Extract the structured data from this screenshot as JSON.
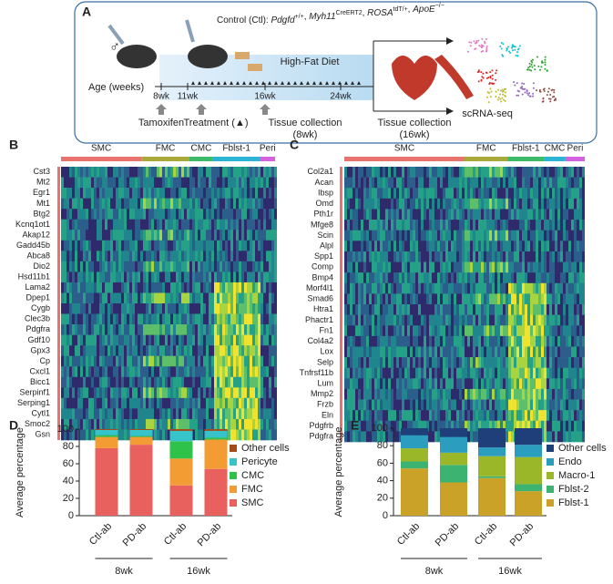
{
  "panel_a": {
    "label": "A",
    "genotype": {
      "prefix": "Control (Ctl): ",
      "separator": ", ",
      "genes": [
        {
          "gene": "Pdgfd",
          "sup": "+/+"
        },
        {
          "gene": "Myh11",
          "sup": "CreERT2"
        },
        {
          "gene": "ROSA",
          "sup": "tdT/+"
        },
        {
          "gene": "ApoE",
          "sup": "−/−"
        }
      ]
    },
    "sex": "♂",
    "diet": "High-Fat Diet",
    "age_label": "Age (weeks)",
    "timeline_labels": [
      "8wk",
      "11wk",
      "16wk",
      "24wk"
    ],
    "steps": [
      "Tamoxifen",
      "Treatment (▲)"
    ],
    "collection_8wk": [
      "Tissue collection",
      "(8wk)"
    ],
    "collection_16wk": [
      "Tissue collection",
      "(16wk)"
    ],
    "method": "scRNA-seq"
  },
  "heatmap_b": {
    "label": "B",
    "clusters": [
      {
        "name": "SMC",
        "color": "#e8726d"
      },
      {
        "name": "FMC",
        "color": "#a8a93a"
      },
      {
        "name": "CMC",
        "color": "#3dbb6a"
      },
      {
        "name": "Fblst-1",
        "color": "#2ab3d3"
      },
      {
        "name": "Peri",
        "color": "#d462e0"
      }
    ],
    "genes": [
      {
        "name": "Cst3",
        "color": "#222222"
      },
      {
        "name": "Mt2",
        "color": "#222222"
      },
      {
        "name": "Egr1",
        "color": "#d6249f"
      },
      {
        "name": "Mt1",
        "color": "#222222"
      },
      {
        "name": "Btg2",
        "color": "#222222"
      },
      {
        "name": "Kcnq1ot1",
        "color": "#222222"
      },
      {
        "name": "Akap12",
        "color": "#d6249f"
      },
      {
        "name": "Gadd45b",
        "color": "#d6249f"
      },
      {
        "name": "Abca8",
        "color": "#d6249f"
      },
      {
        "name": "Dio2",
        "color": "#222222"
      },
      {
        "name": "Hsd11b1",
        "color": "#d6249f"
      },
      {
        "name": "Lama2",
        "color": "#222222"
      },
      {
        "name": "Dpep1",
        "color": "#222222"
      },
      {
        "name": "Cygb",
        "color": "#d6249f"
      },
      {
        "name": "Clec3b",
        "color": "#222222"
      },
      {
        "name": "Pdgfra",
        "color": "#d6249f"
      },
      {
        "name": "Gdf10",
        "color": "#222222"
      },
      {
        "name": "Gpx3",
        "color": "#222222"
      },
      {
        "name": "Cp",
        "color": "#222222"
      },
      {
        "name": "Cxcl1",
        "color": "#222222"
      },
      {
        "name": "Bicc1",
        "color": "#d6249f"
      },
      {
        "name": "Serpinf1",
        "color": "#d6249f"
      },
      {
        "name": "Serping1",
        "color": "#222222"
      },
      {
        "name": "Cytl1",
        "color": "#222222"
      },
      {
        "name": "Smoc2",
        "color": "#222222"
      },
      {
        "name": "Gsn",
        "color": "#d6249f"
      }
    ]
  },
  "heatmap_c": {
    "label": "C",
    "clusters": [
      {
        "name": "SMC",
        "color": "#e8726d"
      },
      {
        "name": "FMC",
        "color": "#a8a93a"
      },
      {
        "name": "Fblst-1",
        "color": "#3dbb6a"
      },
      {
        "name": "CMC",
        "color": "#2ab3d3"
      },
      {
        "name": "Peri",
        "color": "#d462e0"
      }
    ],
    "genes": [
      {
        "name": "Col2a1",
        "color": "#d6249f"
      },
      {
        "name": "Acan",
        "color": "#d6249f"
      },
      {
        "name": "Ibsp",
        "color": "#222222"
      },
      {
        "name": "Omd",
        "color": "#222222"
      },
      {
        "name": "Pth1r",
        "color": "#d6249f"
      },
      {
        "name": "Mfge8",
        "color": "#d6249f"
      },
      {
        "name": "Scin",
        "color": "#d6249f"
      },
      {
        "name": "Alpl",
        "color": "#222222"
      },
      {
        "name": "Spp1",
        "color": "#222222"
      },
      {
        "name": "Comp",
        "color": "#222222"
      },
      {
        "name": "Bmp4",
        "color": "#222222"
      },
      {
        "name": "Morf4l1",
        "color": "#d6249f"
      },
      {
        "name": "Smad6",
        "color": "#d6249f"
      },
      {
        "name": "Htra1",
        "color": "#d6249f"
      },
      {
        "name": "Phactr1",
        "color": "#d6249f"
      },
      {
        "name": "Fn1",
        "color": "#d6249f"
      },
      {
        "name": "Col4a2",
        "color": "#d6249f"
      },
      {
        "name": "Lox",
        "color": "#d6249f"
      },
      {
        "name": "Selp",
        "color": "#d6249f"
      },
      {
        "name": "Tnfrsf11b",
        "color": "#222222"
      },
      {
        "name": "Lum",
        "color": "#222222"
      },
      {
        "name": "Mmp2",
        "color": "#222222"
      },
      {
        "name": "Frzb",
        "color": "#222222"
      },
      {
        "name": "Eln",
        "color": "#222222"
      },
      {
        "name": "Pdgfrb",
        "color": "#222222"
      },
      {
        "name": "Pdgfra",
        "color": "#222222"
      }
    ]
  },
  "chart_data": [
    {
      "type": "bar",
      "stacked": true,
      "panel_label": "D",
      "ylabel": "Average percentage",
      "categories": [
        "Ctl-ab",
        "PD-ab",
        "Ctl-ab",
        "PD-ab"
      ],
      "groups": [
        "8wk",
        "16wk"
      ],
      "ylim": [
        0,
        100
      ],
      "yticks": [
        0,
        20,
        40,
        60,
        80,
        100
      ],
      "series": [
        {
          "name": "SMC",
          "color": "#e8615f",
          "values": [
            78,
            82,
            35,
            54
          ]
        },
        {
          "name": "FMC",
          "color": "#f39c34",
          "values": [
            13,
            9,
            31,
            34
          ]
        },
        {
          "name": "CMC",
          "color": "#2ec24a",
          "values": [
            2,
            1,
            20,
            2
          ]
        },
        {
          "name": "Pericyte",
          "color": "#36c3c9",
          "values": [
            6,
            7,
            12,
            8
          ]
        },
        {
          "name": "Other cells",
          "color": "#a54b1a",
          "values": [
            1,
            1,
            2,
            2
          ]
        }
      ]
    },
    {
      "type": "bar",
      "stacked": true,
      "panel_label": "E",
      "ylabel": "Average percentage",
      "categories": [
        "Ctl-ab",
        "PD-ab",
        "Ctl-ab",
        "PD-ab"
      ],
      "groups": [
        "8wk",
        "16wk"
      ],
      "ylim": [
        0,
        100
      ],
      "yticks": [
        0,
        20,
        40,
        60,
        80,
        100
      ],
      "series": [
        {
          "name": "Fblst-1",
          "color": "#c9a227",
          "values": [
            54,
            38,
            43,
            28
          ]
        },
        {
          "name": "Fblst-2",
          "color": "#3cb371",
          "values": [
            8,
            20,
            2,
            8
          ]
        },
        {
          "name": "Macro-1",
          "color": "#9ab72a",
          "values": [
            15,
            14,
            23,
            31
          ]
        },
        {
          "name": "Endo",
          "color": "#2b9ec0",
          "values": [
            15,
            18,
            10,
            14
          ]
        },
        {
          "name": "Other cells",
          "color": "#1f3f7a",
          "values": [
            8,
            10,
            22,
            19
          ]
        }
      ]
    }
  ]
}
